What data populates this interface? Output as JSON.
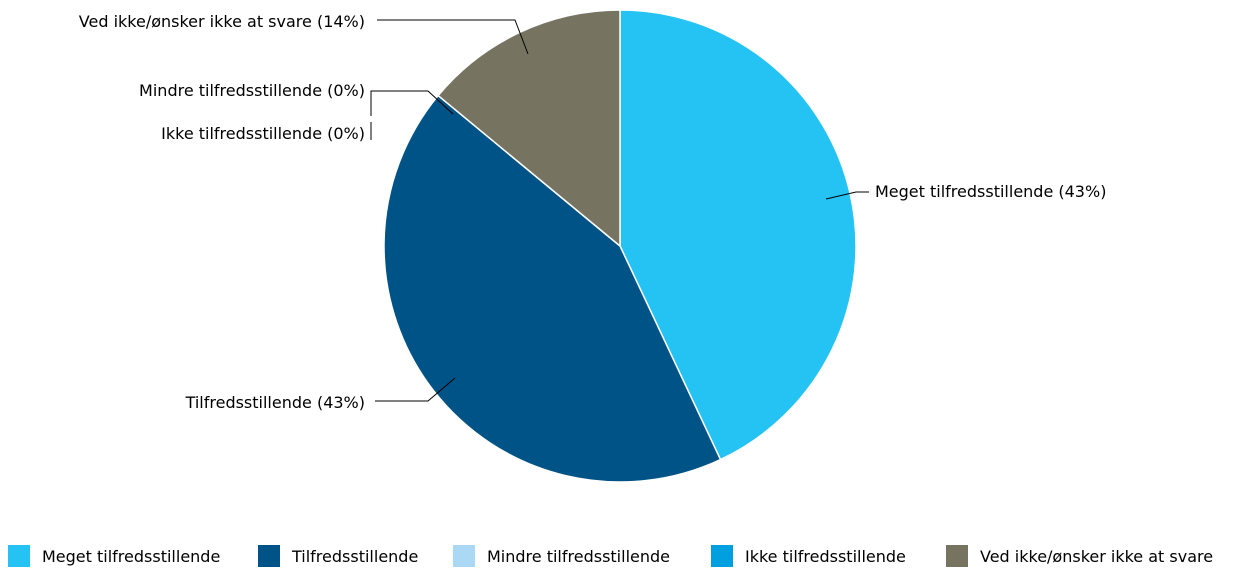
{
  "chart_data": {
    "type": "pie",
    "title": "",
    "slices": [
      {
        "label": "Meget tilfredsstillende",
        "value": 43,
        "color": "#24c3f3",
        "data_label": "Meget tilfredsstillende (43%)"
      },
      {
        "label": "Tilfredsstillende",
        "value": 43,
        "color": "#005386",
        "data_label": "Tilfredsstillende (43%)"
      },
      {
        "label": "Mindre tilfredsstillende",
        "value": 0,
        "color": "#aad8f5",
        "data_label": "Mindre tilfredsstillende (0%)"
      },
      {
        "label": "Ikke tilfredsstillende",
        "value": 0,
        "color": "#009fe0",
        "data_label": "Ikke tilfredsstillende (0%)"
      },
      {
        "label": "Ved ikke/ønsker ikke at svare",
        "value": 14,
        "color": "#767461",
        "data_label": "Ved ikke/ønsker ikke at svare (14%)"
      }
    ],
    "legend_position": "bottom",
    "start_angle": "top",
    "direction": "clockwise"
  }
}
